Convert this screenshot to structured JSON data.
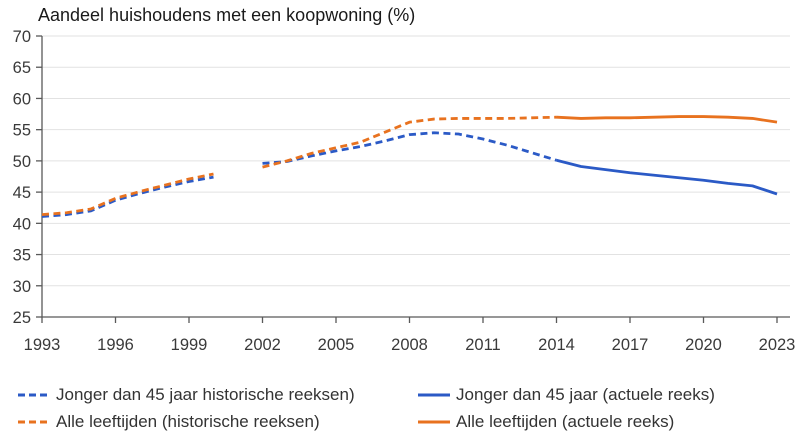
{
  "chart_data": {
    "type": "line",
    "title": "Aandeel huishoudens met een koopwoning (%)",
    "xlabel": "",
    "ylabel": "",
    "grid": true,
    "legend_position": "bottom",
    "x_axis": {
      "min": 1993,
      "max": 2023,
      "ticks": [
        1993,
        1996,
        1999,
        2002,
        2005,
        2008,
        2011,
        2014,
        2017,
        2020,
        2023
      ]
    },
    "y_axis": {
      "min": 25,
      "max": 70,
      "ticks": [
        25,
        30,
        35,
        40,
        45,
        50,
        55,
        60,
        65,
        70
      ]
    },
    "colors": {
      "blue": "#2B5AC6",
      "orange": "#E8721F",
      "axis": "#595959",
      "gridline": "#E2E2E2",
      "text": "#3A3A3A"
    },
    "series": [
      {
        "name": "Jonger dan 45 jaar historische reeksen)",
        "color": "#2B5AC6",
        "style": "dashed",
        "segments": [
          {
            "years": [
              1993,
              1994,
              1995,
              1996,
              1997,
              1998,
              1999,
              2000
            ],
            "values": [
              41.1,
              41.4,
              42.0,
              43.7,
              44.8,
              45.8,
              46.7,
              47.4
            ]
          },
          {
            "years": [
              2002,
              2003,
              2004,
              2005,
              2006,
              2007,
              2008,
              2009,
              2010,
              2011,
              2012,
              2013,
              2014
            ],
            "values": [
              49.6,
              49.9,
              50.8,
              51.6,
              52.3,
              53.2,
              54.2,
              54.5,
              54.3,
              53.5,
              52.5,
              51.3,
              50.1
            ]
          }
        ]
      },
      {
        "name": "Alle leeftijden (historische reeksen)",
        "color": "#E8721F",
        "style": "dashed",
        "segments": [
          {
            "years": [
              1993,
              1994,
              1995,
              1996,
              1997,
              1998,
              1999,
              2000
            ],
            "values": [
              41.4,
              41.7,
              42.3,
              44.0,
              45.1,
              46.1,
              47.1,
              47.9
            ]
          },
          {
            "years": [
              2002,
              2003,
              2004,
              2005,
              2006,
              2007,
              2008,
              2009,
              2010,
              2011,
              2012,
              2013,
              2014
            ],
            "values": [
              49.0,
              50.0,
              51.2,
              52.1,
              53.0,
              54.6,
              56.2,
              56.7,
              56.8,
              56.8,
              56.8,
              56.9,
              57.0
            ]
          }
        ]
      },
      {
        "name": "Jonger dan 45 jaar (actuele reeks)",
        "color": "#2B5AC6",
        "style": "solid",
        "segments": [
          {
            "years": [
              2014,
              2015,
              2016,
              2017,
              2018,
              2019,
              2020,
              2021,
              2022,
              2023
            ],
            "values": [
              50.1,
              49.1,
              48.6,
              48.1,
              47.7,
              47.3,
              46.9,
              46.4,
              46.0,
              44.7
            ]
          }
        ]
      },
      {
        "name": "Alle leeftijden (actuele reeks)",
        "color": "#E8721F",
        "style": "solid",
        "segments": [
          {
            "years": [
              2014,
              2015,
              2016,
              2017,
              2018,
              2019,
              2020,
              2021,
              2022,
              2023
            ],
            "values": [
              57.0,
              56.8,
              56.9,
              56.9,
              57.0,
              57.1,
              57.1,
              57.0,
              56.8,
              56.2
            ]
          }
        ]
      }
    ]
  }
}
